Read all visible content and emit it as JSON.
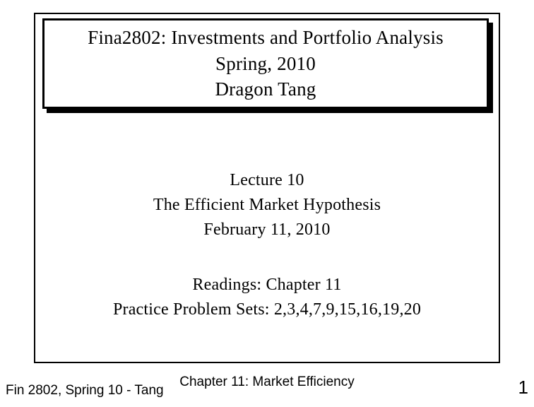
{
  "title": {
    "line1": "Fina2802: Investments and Portfolio Analysis",
    "line2": "Spring, 2010",
    "line3": "Dragon Tang"
  },
  "lecture": {
    "number": "Lecture 10",
    "topic": "The Efficient Market Hypothesis",
    "date": "February 11, 2010"
  },
  "readings": {
    "chapter": "Readings: Chapter 11",
    "problems": "Practice Problem Sets: 2,3,4,7,9,15,16,19,20"
  },
  "footer": {
    "left": "Fin 2802, Spring 10 - Tang",
    "center": "Chapter 11: Market Efficiency",
    "page": "1"
  },
  "style": {
    "background": "#ffffff",
    "text_color": "#000000",
    "border_color": "#000000",
    "title_fontsize": 27,
    "body_fontsize": 24,
    "footer_fontsize": 19,
    "page_fontsize": 26
  }
}
